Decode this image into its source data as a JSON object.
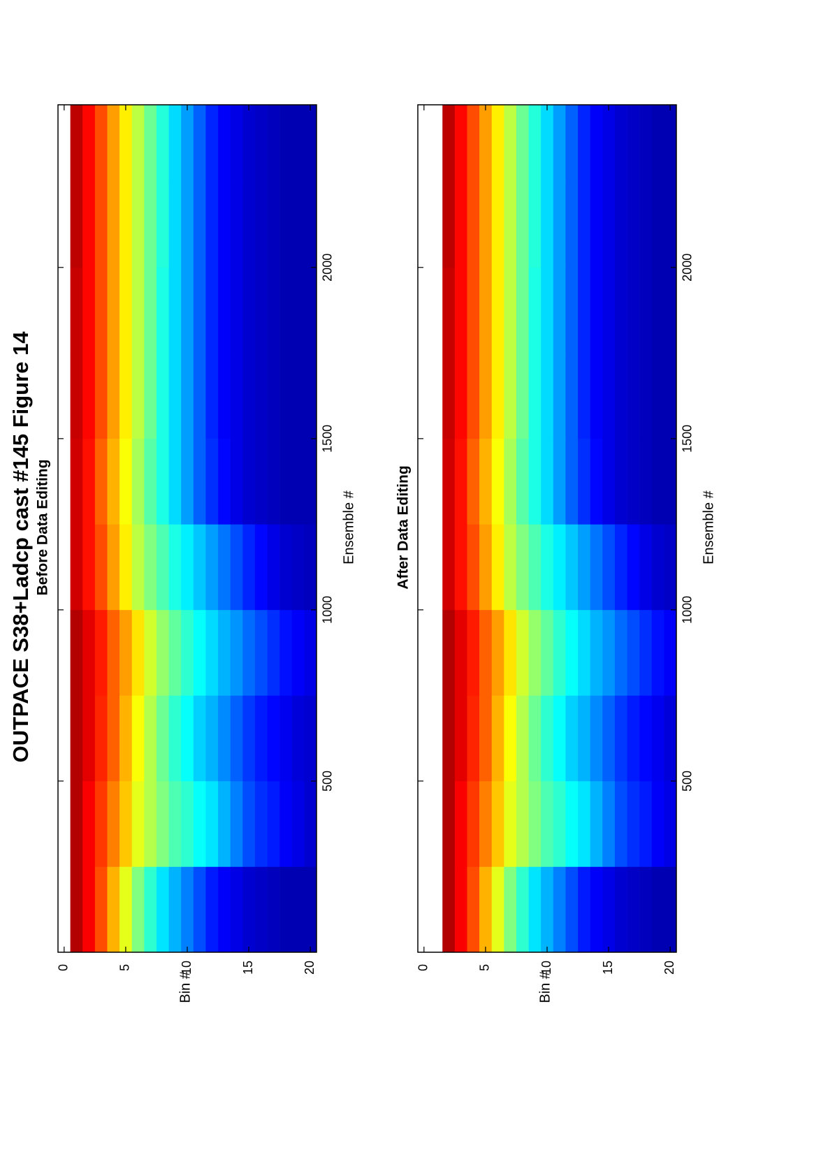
{
  "title": "OUTPACE S38+Ladcp cast #145  Figure 14",
  "chart_data": [
    {
      "type": "heatmap",
      "title": "Before Data Editing",
      "xlabel": "Ensemble #",
      "ylabel": "Bin #",
      "xlim": [
        0,
        2475
      ],
      "xticks": [
        500,
        1000,
        1500,
        2000
      ],
      "ylim": [
        -0.5,
        20.5
      ],
      "yticks": [
        0,
        5,
        10,
        15,
        20
      ],
      "y_reversed": true,
      "x_edges": [
        0,
        250,
        500,
        750,
        1000,
        1250,
        1500,
        1750,
        2000,
        2250,
        2475
      ],
      "y": [
        1,
        2,
        3,
        4,
        5,
        6,
        7,
        8,
        9,
        10,
        11,
        12,
        13,
        14,
        15,
        16,
        17,
        18,
        19,
        20
      ],
      "zlim": [
        0,
        1
      ],
      "colormap": "jet",
      "z": [
        [
          0.95,
          0.88,
          0.8,
          0.7,
          0.6,
          0.5,
          0.42,
          0.35,
          0.3,
          0.25,
          0.2,
          0.15,
          0.12,
          0.1,
          0.08,
          0.07,
          0.06,
          0.05,
          0.05,
          0.05
        ],
        [
          0.95,
          0.88,
          0.82,
          0.75,
          0.68,
          0.6,
          0.55,
          0.5,
          0.45,
          0.42,
          0.38,
          0.35,
          0.3,
          0.25,
          0.2,
          0.17,
          0.15,
          0.12,
          0.1,
          0.08
        ],
        [
          0.95,
          0.9,
          0.84,
          0.78,
          0.7,
          0.62,
          0.55,
          0.48,
          0.42,
          0.38,
          0.33,
          0.3,
          0.26,
          0.22,
          0.18,
          0.15,
          0.13,
          0.11,
          0.09,
          0.08
        ],
        [
          0.95,
          0.9,
          0.85,
          0.78,
          0.72,
          0.65,
          0.58,
          0.52,
          0.47,
          0.42,
          0.38,
          0.34,
          0.3,
          0.27,
          0.23,
          0.2,
          0.17,
          0.14,
          0.12,
          0.1
        ],
        [
          0.92,
          0.86,
          0.8,
          0.72,
          0.64,
          0.56,
          0.5,
          0.45,
          0.4,
          0.36,
          0.32,
          0.28,
          0.24,
          0.2,
          0.16,
          0.13,
          0.1,
          0.08,
          0.07,
          0.06
        ],
        [
          0.92,
          0.86,
          0.78,
          0.7,
          0.62,
          0.54,
          0.46,
          0.4,
          0.34,
          0.28,
          0.22,
          0.17,
          0.13,
          0.1,
          0.08,
          0.07,
          0.06,
          0.05,
          0.05,
          0.05
        ],
        [
          0.93,
          0.87,
          0.8,
          0.72,
          0.64,
          0.56,
          0.48,
          0.4,
          0.34,
          0.28,
          0.22,
          0.16,
          0.12,
          0.1,
          0.08,
          0.07,
          0.06,
          0.05,
          0.05,
          0.05
        ],
        [
          0.93,
          0.87,
          0.8,
          0.72,
          0.64,
          0.56,
          0.48,
          0.4,
          0.34,
          0.28,
          0.22,
          0.16,
          0.12,
          0.1,
          0.08,
          0.07,
          0.06,
          0.05,
          0.05,
          0.05
        ],
        [
          0.94,
          0.87,
          0.8,
          0.72,
          0.64,
          0.56,
          0.48,
          0.41,
          0.34,
          0.28,
          0.22,
          0.16,
          0.12,
          0.1,
          0.08,
          0.07,
          0.06,
          0.05,
          0.05,
          0.05
        ],
        [
          0.94,
          0.87,
          0.8,
          0.72,
          0.64,
          0.56,
          0.48,
          0.41,
          0.34,
          0.28,
          0.22,
          0.16,
          0.12,
          0.1,
          0.08,
          0.07,
          0.06,
          0.05,
          0.05,
          0.05
        ]
      ]
    },
    {
      "type": "heatmap",
      "title": "After Data Editing",
      "xlabel": "Ensemble #",
      "ylabel": "Bin #",
      "xlim": [
        0,
        2475
      ],
      "xticks": [
        500,
        1000,
        1500,
        2000
      ],
      "ylim": [
        -0.5,
        20.5
      ],
      "yticks": [
        0,
        5,
        10,
        15,
        20
      ],
      "y_reversed": true,
      "x_edges": [
        0,
        250,
        500,
        750,
        1000,
        1250,
        1500,
        1750,
        2000,
        2250,
        2475
      ],
      "y": [
        1,
        2,
        3,
        4,
        5,
        6,
        7,
        8,
        9,
        10,
        11,
        12,
        13,
        14,
        15,
        16,
        17,
        18,
        19,
        20
      ],
      "zlim": [
        0,
        1
      ],
      "colormap": "jet",
      "z": [
        [
          null,
          0.95,
          0.88,
          0.8,
          0.7,
          0.6,
          0.5,
          0.42,
          0.35,
          0.3,
          0.25,
          0.2,
          0.15,
          0.12,
          0.1,
          0.08,
          0.07,
          0.06,
          0.05,
          0.05
        ],
        [
          null,
          0.95,
          0.88,
          0.82,
          0.75,
          0.68,
          0.6,
          0.55,
          0.5,
          0.45,
          0.42,
          0.38,
          0.35,
          0.3,
          0.25,
          0.2,
          0.17,
          0.15,
          0.12,
          0.1
        ],
        [
          null,
          0.95,
          0.9,
          0.84,
          0.78,
          0.7,
          0.62,
          0.55,
          0.48,
          0.42,
          0.38,
          0.33,
          0.3,
          0.26,
          0.22,
          0.18,
          0.15,
          0.13,
          0.11,
          0.09
        ],
        [
          null,
          0.95,
          0.9,
          0.85,
          0.78,
          0.72,
          0.65,
          0.58,
          0.52,
          0.47,
          0.42,
          0.38,
          0.34,
          0.3,
          0.27,
          0.23,
          0.2,
          0.17,
          0.14,
          0.12
        ],
        [
          null,
          0.92,
          0.86,
          0.8,
          0.72,
          0.64,
          0.56,
          0.5,
          0.45,
          0.4,
          0.36,
          0.32,
          0.28,
          0.24,
          0.2,
          0.16,
          0.13,
          0.1,
          0.08,
          0.07
        ],
        [
          null,
          0.92,
          0.86,
          0.78,
          0.7,
          0.62,
          0.54,
          0.46,
          0.4,
          0.34,
          0.28,
          0.22,
          0.17,
          0.13,
          0.1,
          0.08,
          0.07,
          0.06,
          0.05,
          0.05
        ],
        [
          null,
          0.93,
          0.87,
          0.8,
          0.72,
          0.64,
          0.56,
          0.48,
          0.4,
          0.34,
          0.28,
          0.22,
          0.16,
          0.12,
          0.1,
          0.08,
          0.07,
          0.06,
          0.05,
          0.05
        ],
        [
          null,
          0.93,
          0.87,
          0.8,
          0.72,
          0.64,
          0.56,
          0.48,
          0.4,
          0.34,
          0.28,
          0.22,
          0.16,
          0.12,
          0.1,
          0.08,
          0.07,
          0.06,
          0.05,
          0.05
        ],
        [
          null,
          0.94,
          0.87,
          0.8,
          0.72,
          0.64,
          0.56,
          0.48,
          0.41,
          0.34,
          0.28,
          0.22,
          0.16,
          0.12,
          0.1,
          0.08,
          0.07,
          0.06,
          0.05,
          0.05
        ],
        [
          null,
          0.94,
          0.87,
          0.8,
          0.72,
          0.64,
          0.56,
          0.48,
          0.41,
          0.34,
          0.28,
          0.22,
          0.16,
          0.12,
          0.1,
          0.08,
          0.07,
          0.06,
          0.05,
          0.05
        ]
      ]
    }
  ]
}
